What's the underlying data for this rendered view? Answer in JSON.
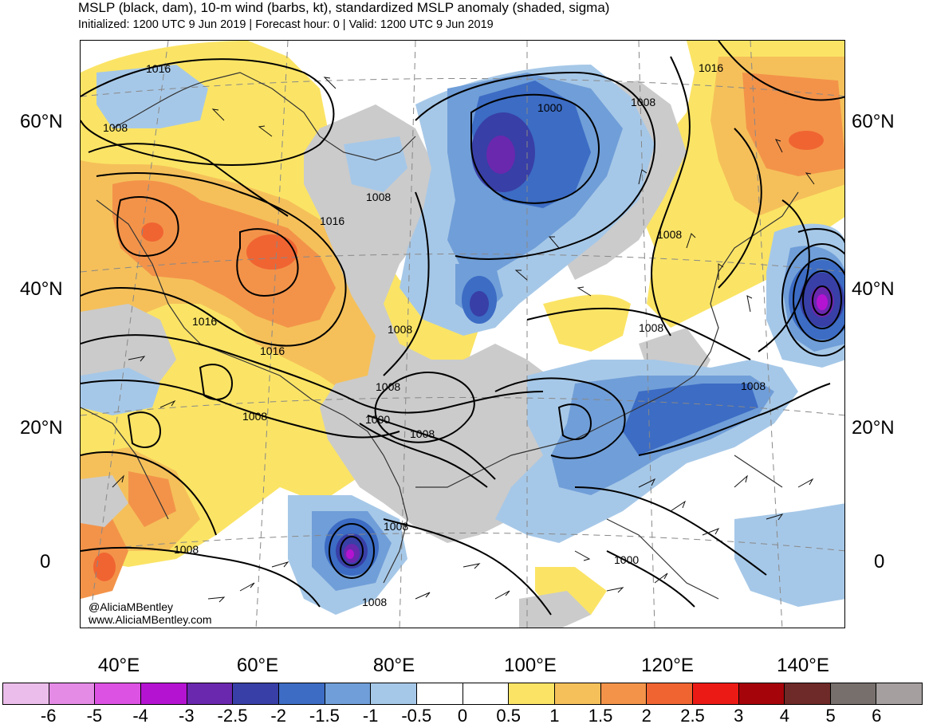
{
  "title": {
    "line1": "MSLP (black, dam), 10-m wind (barbs, kt), standardized MSLP anomaly (shaded, sigma)",
    "line2": "Initialized: 1200 UTC 9 Jun 2019 | Forecast hour: 0 | Valid: 1200 UTC 9 Jun 2019"
  },
  "axes": {
    "lat_labels": [
      "60°N",
      "40°N",
      "20°N",
      "0"
    ],
    "lon_labels": [
      "40°E",
      "60°E",
      "80°E",
      "100°E",
      "120°E",
      "140°E"
    ]
  },
  "isobar_labels": [
    "1016",
    "1008",
    "1000",
    "1008",
    "1016",
    "1008",
    "1008",
    "1016",
    "1008",
    "1016",
    "1016",
    "1008",
    "1008",
    "1008",
    "1000",
    "1008",
    "1008",
    "1008",
    "1000",
    "1008",
    "1008"
  ],
  "credit": {
    "handle": "@AliciaMBentley",
    "site": "www.AliciaMBentley.com"
  },
  "colorbar": {
    "colors": [
      "#ebbdea",
      "#e48be6",
      "#dc52e2",
      "#b513d2",
      "#6a28ae",
      "#383fa6",
      "#3c6cc4",
      "#709ed8",
      "#a6c8e8",
      "#ffffff",
      "#ffffff",
      "#fbe465",
      "#f5c05a",
      "#f39349",
      "#f06432",
      "#eb1a15",
      "#a5050a",
      "#6e2a28",
      "#766f6c",
      "#a59f9f"
    ],
    "tick_labels": [
      "-6",
      "-5",
      "-4",
      "-3",
      "-2.5",
      "-2",
      "-1.5",
      "-1",
      "-0.5",
      "0",
      "0.5",
      "1",
      "1.5",
      "2",
      "2.5",
      "3",
      "4",
      "5",
      "6"
    ]
  },
  "anomaly_colors": {
    "land_outline": "#333333",
    "isobar": "#000000",
    "grid": "#888888",
    "gray_shade": "#cbcbcb"
  }
}
